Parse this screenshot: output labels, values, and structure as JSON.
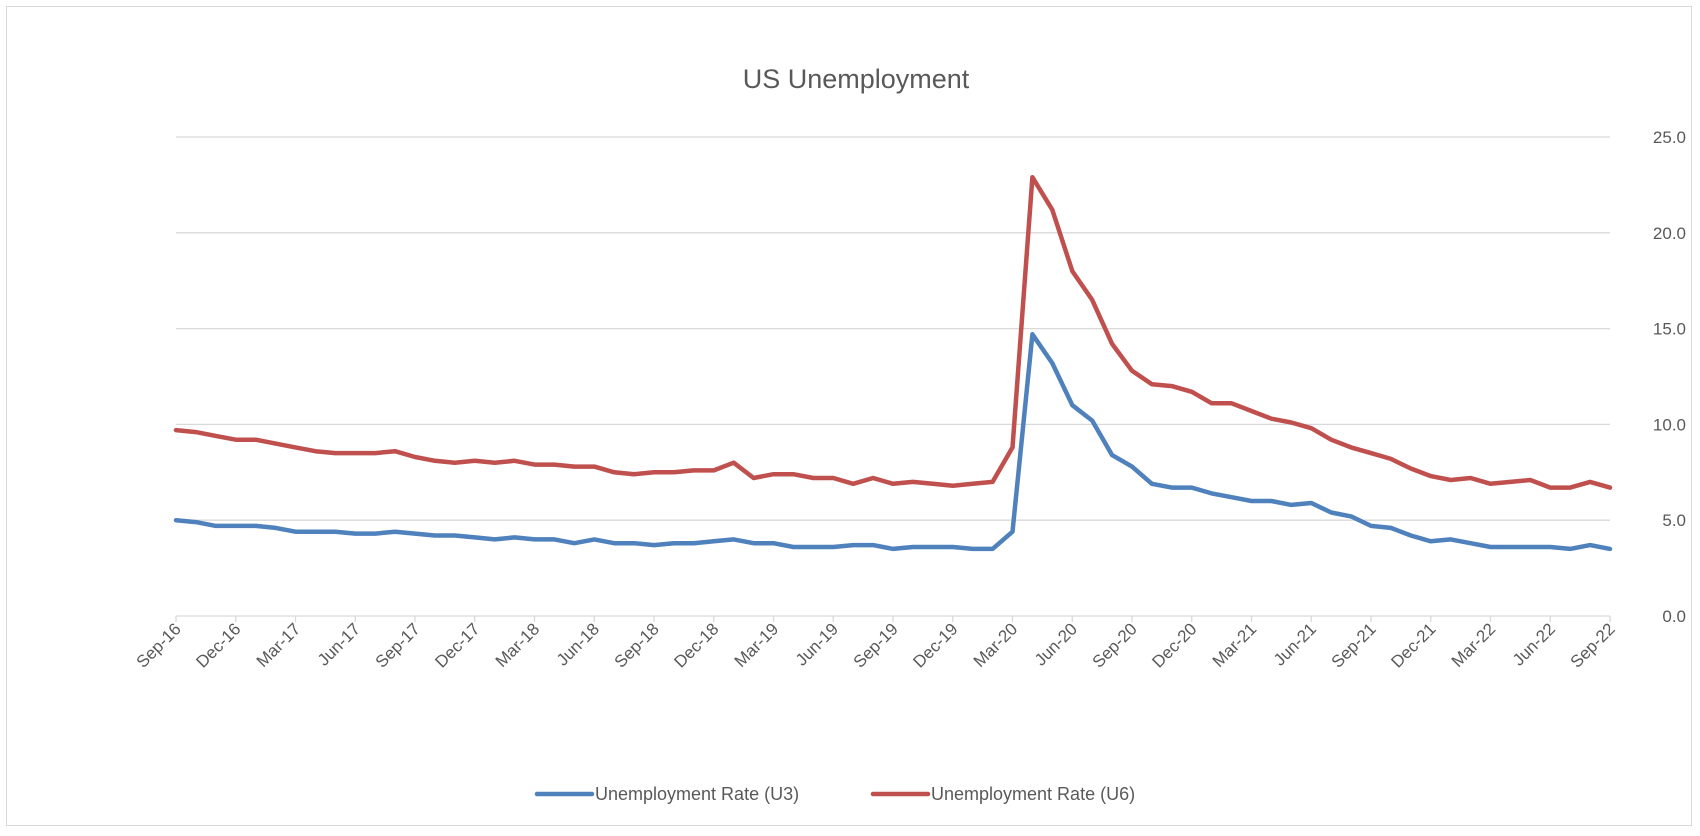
{
  "chart_data": {
    "type": "line",
    "title": "US Unemployment",
    "xlabel": "",
    "ylabel": "",
    "y_axis_position": "right",
    "ylim": [
      0,
      25
    ],
    "y_ticks": [
      "0.0",
      "5.0",
      "10.0",
      "15.0",
      "20.0",
      "25.0"
    ],
    "x_tick_labels": [
      "Sep-16",
      "Dec-16",
      "Mar-17",
      "Jun-17",
      "Sep-17",
      "Dec-17",
      "Mar-18",
      "Jun-18",
      "Sep-18",
      "Dec-18",
      "Mar-19",
      "Jun-19",
      "Sep-19",
      "Dec-19",
      "Mar-20",
      "Jun-20",
      "Sep-20",
      "Dec-20",
      "Mar-21",
      "Jun-21",
      "Sep-21",
      "Dec-21",
      "Mar-22",
      "Jun-22",
      "Sep-22"
    ],
    "grid": "horizontal",
    "legend_position": "bottom",
    "x_start": "2016-09",
    "x_end": "2022-09",
    "series": [
      {
        "name": "Unemployment Rate (U3)",
        "color": "#4f81bd",
        "values": [
          5.0,
          4.9,
          4.7,
          4.7,
          4.7,
          4.6,
          4.4,
          4.4,
          4.4,
          4.3,
          4.3,
          4.4,
          4.3,
          4.2,
          4.2,
          4.1,
          4.0,
          4.1,
          4.0,
          4.0,
          3.8,
          4.0,
          3.8,
          3.8,
          3.7,
          3.8,
          3.8,
          3.9,
          4.0,
          3.8,
          3.8,
          3.6,
          3.6,
          3.6,
          3.7,
          3.7,
          3.5,
          3.6,
          3.6,
          3.6,
          3.5,
          3.5,
          4.4,
          14.7,
          13.2,
          11.0,
          10.2,
          8.4,
          7.8,
          6.9,
          6.7,
          6.7,
          6.4,
          6.2,
          6.0,
          6.0,
          5.8,
          5.9,
          5.4,
          5.2,
          4.7,
          4.6,
          4.2,
          3.9,
          4.0,
          3.8,
          3.6,
          3.6,
          3.6,
          3.6,
          3.5,
          3.7,
          3.5
        ]
      },
      {
        "name": "Unemployment Rate (U6)",
        "color": "#c0504d",
        "values": [
          9.7,
          9.6,
          9.4,
          9.2,
          9.2,
          9.0,
          8.8,
          8.6,
          8.5,
          8.5,
          8.5,
          8.6,
          8.3,
          8.1,
          8.0,
          8.1,
          8.0,
          8.1,
          7.9,
          7.9,
          7.8,
          7.8,
          7.5,
          7.4,
          7.5,
          7.5,
          7.6,
          7.6,
          8.0,
          7.2,
          7.4,
          7.4,
          7.2,
          7.2,
          6.9,
          7.2,
          6.9,
          7.0,
          6.9,
          6.8,
          6.9,
          7.0,
          8.8,
          22.9,
          21.2,
          18.0,
          16.5,
          14.2,
          12.8,
          12.1,
          12.0,
          11.7,
          11.1,
          11.1,
          10.7,
          10.3,
          10.1,
          9.8,
          9.2,
          8.8,
          8.5,
          8.2,
          7.7,
          7.3,
          7.1,
          7.2,
          6.9,
          7.0,
          7.1,
          6.7,
          6.7,
          7.0,
          6.7
        ]
      }
    ]
  }
}
